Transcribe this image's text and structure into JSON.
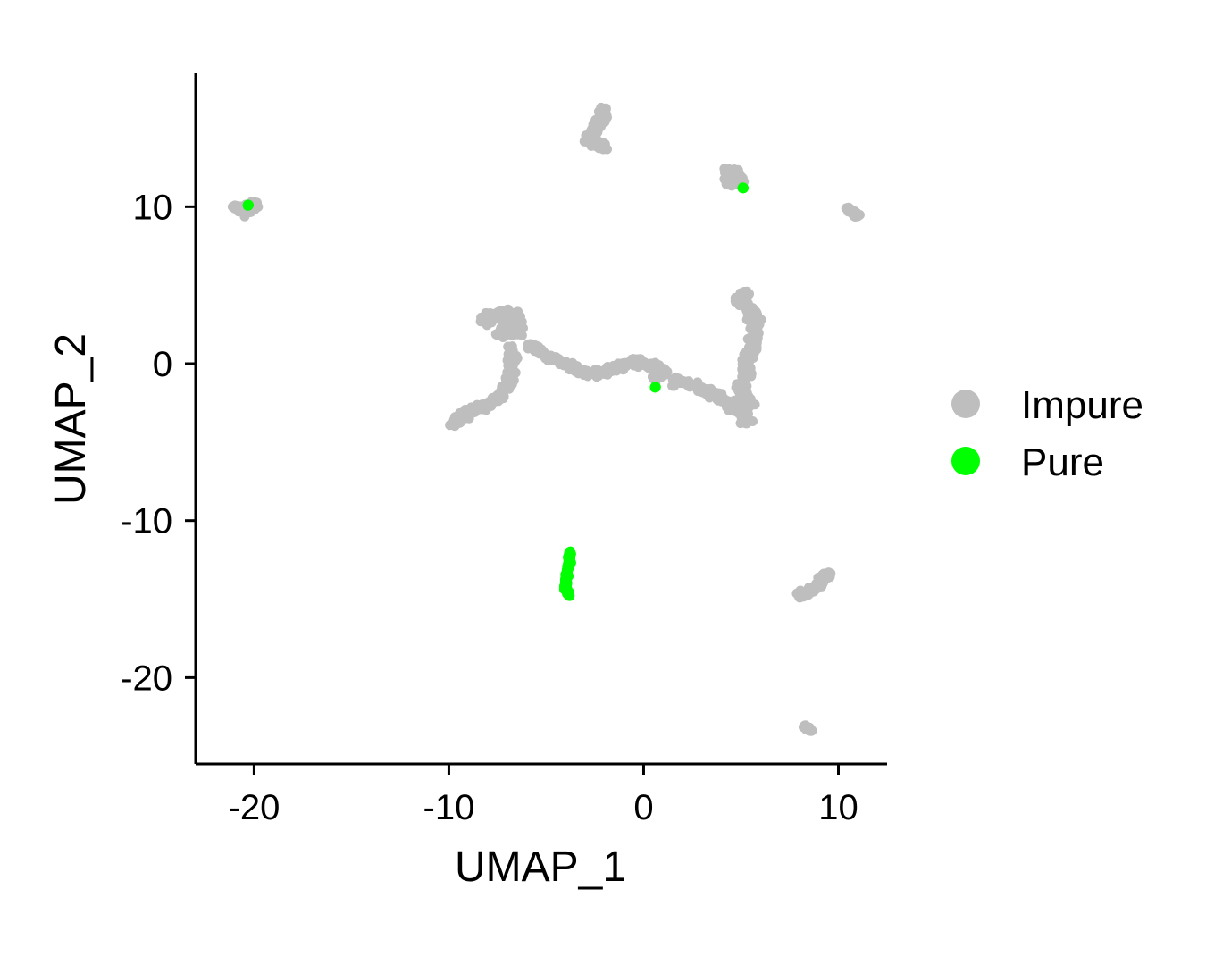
{
  "chart_data": {
    "type": "scatter",
    "title": "",
    "xlabel": "UMAP_1",
    "ylabel": "UMAP_2",
    "xlim": [
      -23,
      12.5
    ],
    "ylim": [
      -25.5,
      18.5
    ],
    "xticks": [
      -20,
      -10,
      0,
      10
    ],
    "yticks": [
      -20,
      -10,
      0,
      10
    ],
    "xtick_labels": [
      "-20",
      "-10",
      "0",
      "10"
    ],
    "ytick_labels": [
      "-20",
      "-10",
      "0",
      "10"
    ],
    "grid": false,
    "legend_position": "right",
    "series": [
      {
        "name": "Impure",
        "color": "#bebebe",
        "clusters": [
          {
            "points": [
              [
                -21.0,
                10.0
              ],
              [
                -20.6,
                9.8
              ],
              [
                -20.2,
                10.0
              ],
              [
                -19.9,
                10.1
              ],
              [
                -20.5,
                9.6
              ]
            ],
            "spread": 0.3
          },
          {
            "points": [
              [
                -2.0,
                16.2
              ],
              [
                -2.2,
                15.5
              ],
              [
                -2.5,
                14.8
              ],
              [
                -2.8,
                14.2
              ],
              [
                -2.3,
                14.0
              ],
              [
                -2.0,
                13.8
              ]
            ],
            "spread": 0.35
          },
          {
            "points": [
              [
                4.2,
                12.3
              ],
              [
                4.8,
                12.2
              ],
              [
                5.0,
                11.6
              ],
              [
                4.3,
                11.5
              ],
              [
                4.7,
                11.9
              ]
            ],
            "spread": 0.3
          },
          {
            "points": [
              [
                10.4,
                9.9
              ],
              [
                10.8,
                9.6
              ],
              [
                11.0,
                9.4
              ]
            ],
            "spread": 0.2
          },
          {
            "points": [
              [
                -8.3,
                2.7
              ],
              [
                -7.5,
                3.2
              ],
              [
                -6.7,
                3.1
              ],
              [
                -6.5,
                2.0
              ],
              [
                -7.3,
                1.9
              ],
              [
                -7.0,
                2.5
              ]
            ],
            "spread": 0.5
          },
          {
            "points": [
              [
                -6.8,
                1.0
              ],
              [
                -6.7,
                0.0
              ],
              [
                -6.9,
                -1.2
              ],
              [
                -7.4,
                -2.1
              ],
              [
                -8.1,
                -2.7
              ],
              [
                -8.8,
                -3.0
              ],
              [
                -9.5,
                -3.4
              ],
              [
                -9.8,
                -3.8
              ]
            ],
            "spread": 0.35
          },
          {
            "points": [
              [
                -5.8,
                1.2
              ],
              [
                -5.0,
                0.6
              ],
              [
                -4.0,
                0.0
              ],
              [
                -3.2,
                -0.5
              ],
              [
                -2.2,
                -0.6
              ],
              [
                -1.2,
                -0.2
              ],
              [
                -0.4,
                0.2
              ],
              [
                0.3,
                -0.1
              ],
              [
                1.1,
                -0.4
              ],
              [
                0.6,
                -0.9
              ]
            ],
            "spread": 0.35
          },
          {
            "points": [
              [
                1.5,
                -1.0
              ],
              [
                2.5,
                -1.4
              ],
              [
                3.3,
                -1.8
              ],
              [
                4.2,
                -2.4
              ],
              [
                5.0,
                -3.0
              ],
              [
                5.3,
                -3.8
              ]
            ],
            "spread": 0.4
          },
          {
            "points": [
              [
                5.3,
                4.6
              ],
              [
                5.0,
                4.0
              ],
              [
                5.6,
                3.2
              ],
              [
                5.7,
                2.3
              ],
              [
                5.6,
                1.3
              ],
              [
                5.4,
                0.5
              ],
              [
                5.3,
                -0.5
              ],
              [
                5.0,
                -1.6
              ],
              [
                5.4,
                -2.6
              ]
            ],
            "spread": 0.45
          },
          {
            "points": [
              [
                8.0,
                -14.8
              ],
              [
                8.6,
                -14.4
              ],
              [
                9.2,
                -13.8
              ],
              [
                9.5,
                -13.3
              ]
            ],
            "spread": 0.35
          },
          {
            "points": [
              [
                8.3,
                -23.1
              ],
              [
                8.6,
                -23.4
              ]
            ],
            "spread": 0.15
          }
        ]
      },
      {
        "name": "Pure",
        "color": "#00ff00",
        "clusters": [
          {
            "points": [
              [
                -3.8,
                -12.0
              ],
              [
                -3.8,
                -12.6
              ],
              [
                -3.9,
                -13.2
              ],
              [
                -4.0,
                -13.8
              ],
              [
                -4.0,
                -14.3
              ],
              [
                -3.8,
                -14.8
              ]
            ],
            "spread": 0.12
          },
          {
            "points": [
              [
                5.1,
                11.2
              ]
            ],
            "spread": 0.05
          },
          {
            "points": [
              [
                0.6,
                -1.5
              ]
            ],
            "spread": 0.05
          },
          {
            "points": [
              [
                -20.3,
                10.1
              ]
            ],
            "spread": 0.05
          }
        ]
      }
    ]
  }
}
